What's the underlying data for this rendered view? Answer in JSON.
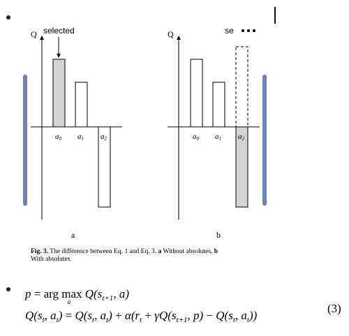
{
  "figure": {
    "panel_a": {
      "axis_label": "Q",
      "annotation": "selected",
      "ticks": [
        "a0",
        "a1",
        "a2"
      ],
      "panel_label": "a",
      "bars": [
        {
          "action": "a0",
          "value": 0.62,
          "selected": true
        },
        {
          "action": "a1",
          "value": 0.44,
          "selected": false
        },
        {
          "action": "a2",
          "value": -0.78,
          "selected": false
        }
      ]
    },
    "panel_b": {
      "axis_label": "Q",
      "annotation": "se",
      "ticks": [
        "a0",
        "a1",
        "a2"
      ],
      "panel_label": "b",
      "bars": [
        {
          "action": "a0",
          "value": 0.62,
          "selected": false
        },
        {
          "action": "a1",
          "value": 0.44,
          "selected": false
        },
        {
          "action": "a2",
          "value": -0.78,
          "selected": true,
          "absolute_dashed": 0.78
        }
      ]
    }
  },
  "caption": {
    "fig_label": "Fig. 3.",
    "text_1": " The difference between Eq. 1 and Eq. 3. ",
    "bold_a": "a",
    "text_a": " Without absolutes. ",
    "bold_b": "b",
    "text_b": "With absolutes"
  },
  "equation": {
    "number": "(3)"
  },
  "colors": {
    "selected_fill": "#d3d3d3",
    "side_bar": "#6e82b4"
  }
}
